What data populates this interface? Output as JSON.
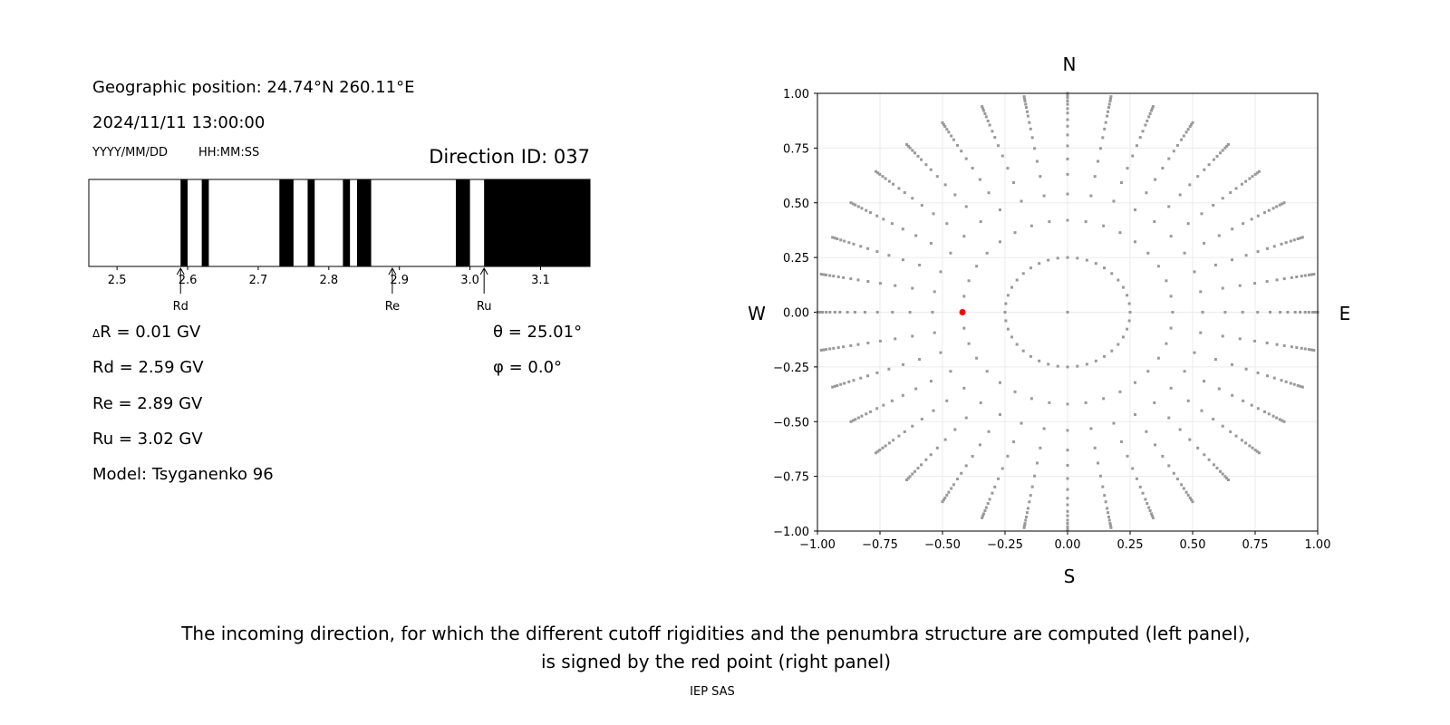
{
  "left_panel": {
    "position": "Geographic position: 24.74°N 260.11°E",
    "datetime": "2024/11/11 13:00:00",
    "date_format": "YYYY/MM/DD",
    "time_format": "HH:MM:SS",
    "direction_id": "Direction ID: 037",
    "delta_r": "R = 0.01 GV",
    "delta_symbol": "Δ",
    "rd": "Rd = 2.59 GV",
    "re": "Re = 2.89 GV",
    "ru": "Ru = 3.02 GV",
    "model": "Model: Tsyganenko 96",
    "theta": "θ = 25.01°",
    "phi": "φ = 0.0°"
  },
  "caption": {
    "line1": "The incoming direction, for which the different cutoff rigidities and the penumbra structure are computed (left panel),",
    "line2": "is signed by the red point (right panel)",
    "credit": "IEP SAS"
  },
  "chart_data": [
    {
      "type": "penumbra-bar",
      "xlim": [
        2.46,
        3.17
      ],
      "xticks": [
        2.5,
        2.6,
        2.7,
        2.8,
        2.9,
        3.0,
        3.1
      ],
      "xtick_labels": [
        "2.5",
        "2.6",
        "2.7",
        "2.8",
        "2.9",
        "3.0",
        "3.1"
      ],
      "forbidden_bands": [
        [
          2.59,
          2.6
        ],
        [
          2.62,
          2.63
        ],
        [
          2.73,
          2.75
        ],
        [
          2.77,
          2.78
        ],
        [
          2.82,
          2.83
        ],
        [
          2.84,
          2.86
        ],
        [
          2.98,
          3.0
        ],
        [
          3.02,
          3.17
        ]
      ],
      "markers": [
        {
          "label": "Rd",
          "value": 2.59
        },
        {
          "label": "Re",
          "value": 2.89
        },
        {
          "label": "Ru",
          "value": 3.02
        }
      ],
      "colors": {
        "forbidden": "#000000",
        "allowed": "#ffffff"
      }
    },
    {
      "type": "scatter",
      "xlim": [
        -1,
        1
      ],
      "ylim": [
        -1,
        1
      ],
      "ticks": [
        -1.0,
        -0.75,
        -0.5,
        -0.25,
        0.0,
        0.25,
        0.5,
        0.75,
        1.0
      ],
      "tick_labels": [
        "−1.00",
        "−0.75",
        "−0.50",
        "−0.25",
        "0.00",
        "0.25",
        "0.50",
        "0.75",
        "1.00"
      ],
      "grid": true,
      "compass": {
        "top": "N",
        "bottom": "S",
        "left": "W",
        "right": "E"
      },
      "grid_points": {
        "center": [
          0,
          0
        ],
        "inner_ring_radius": 0.25,
        "inner_ring_count": 40,
        "spoke_count": 36,
        "spoke_radii": [
          0.42,
          0.54,
          0.63,
          0.7,
          0.76,
          0.81,
          0.85,
          0.88,
          0.91,
          0.93,
          0.95,
          0.965,
          0.98,
          0.99,
          1.0
        ]
      },
      "selected_point": {
        "x": -0.42,
        "y": 0.0
      },
      "colors": {
        "points": "#999999",
        "selected": "#ff0000"
      }
    }
  ]
}
